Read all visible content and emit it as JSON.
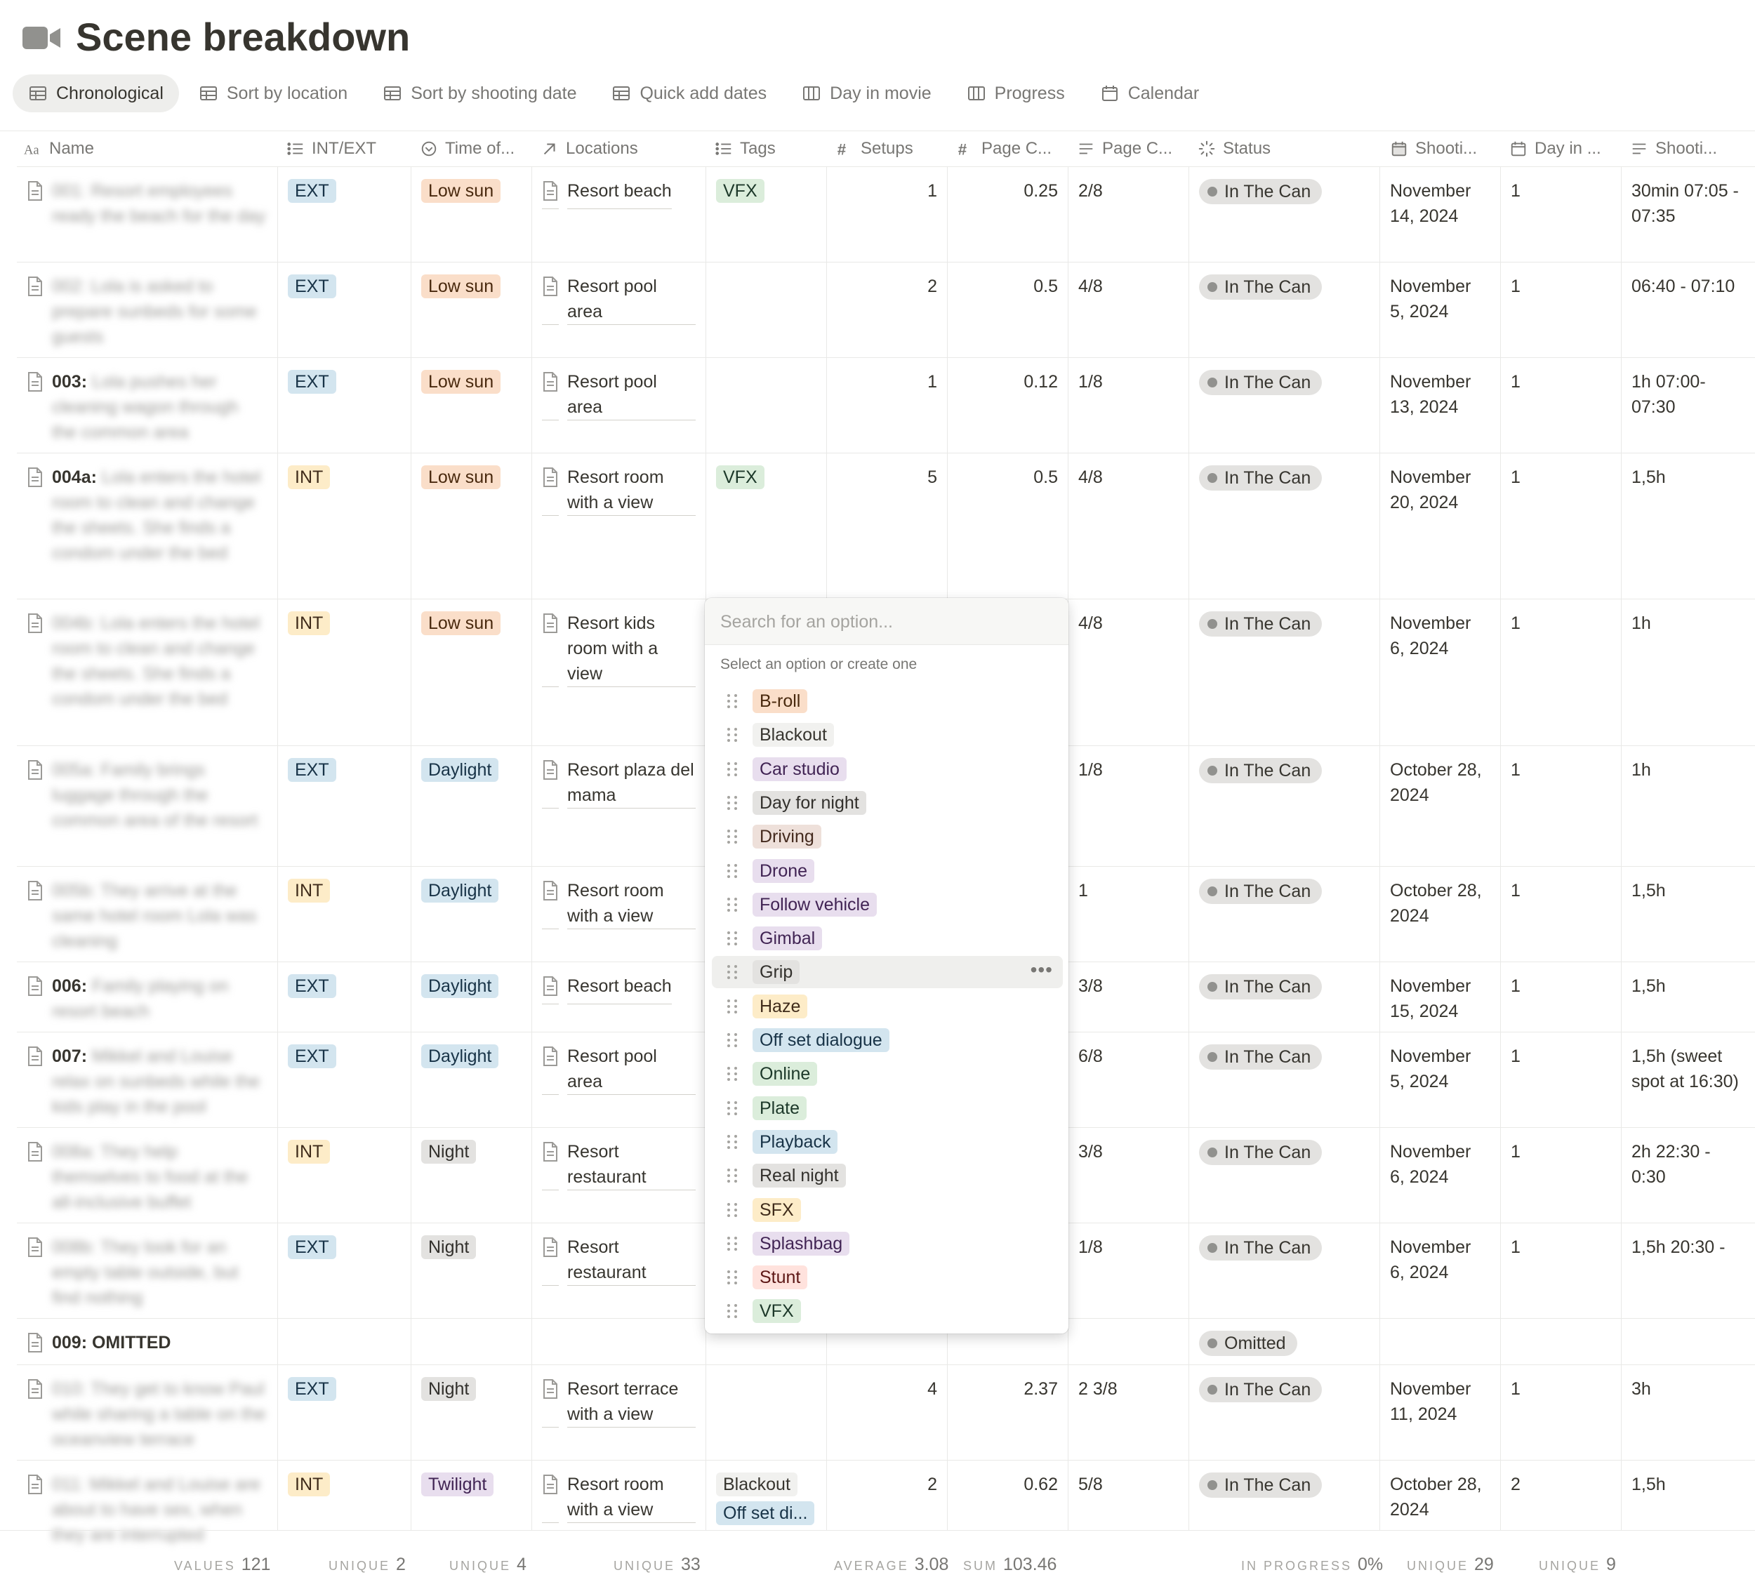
{
  "page": {
    "title": "Scene breakdown",
    "icon": "video-camera-icon"
  },
  "views": [
    {
      "label": "Chronological",
      "icon": "table-icon",
      "active": true
    },
    {
      "label": "Sort by location",
      "icon": "table-icon"
    },
    {
      "label": "Sort by shooting date",
      "icon": "table-icon"
    },
    {
      "label": "Quick add dates",
      "icon": "table-icon"
    },
    {
      "label": "Day in movie",
      "icon": "board-icon"
    },
    {
      "label": "Progress",
      "icon": "board-icon"
    },
    {
      "label": "Calendar",
      "icon": "calendar-icon"
    }
  ],
  "columns": [
    {
      "label": "Name",
      "icon": "text-icon"
    },
    {
      "label": "INT/EXT",
      "icon": "list-icon"
    },
    {
      "label": "Time of...",
      "icon": "select-icon"
    },
    {
      "label": "Locations",
      "icon": "relation-icon"
    },
    {
      "label": "Tags",
      "icon": "list-icon"
    },
    {
      "label": "Setups",
      "icon": "number-icon"
    },
    {
      "label": "Page C...",
      "icon": "number-icon"
    },
    {
      "label": "Page C...",
      "icon": "text-lines-icon"
    },
    {
      "label": "Status",
      "icon": "status-icon"
    },
    {
      "label": "Shooti...",
      "icon": "date-icon"
    },
    {
      "label": "Day in ...",
      "icon": "calendar-icon"
    },
    {
      "label": "Shooti...",
      "icon": "text-lines-icon"
    }
  ],
  "rows": [
    {
      "prefix": "",
      "desc": "001: Resort employees ready the beach for the day",
      "intext": "EXT",
      "time": "Low sun",
      "location": "Resort beach",
      "tags": [
        "VFX"
      ],
      "setups": "1",
      "pages_num": "0.25",
      "pages_frac": "2/8",
      "status": "In The Can",
      "date": "November 14, 2024",
      "day": "1",
      "time_text": "30min 07:05 - 07:35"
    },
    {
      "prefix": "",
      "desc": "002: Lola is asked to prepare sunbeds for some guests",
      "intext": "EXT",
      "time": "Low sun",
      "location": "Resort pool area",
      "tags": [],
      "setups": "2",
      "pages_num": "0.5",
      "pages_frac": "4/8",
      "status": "In The Can",
      "date": "November 5, 2024",
      "day": "1",
      "time_text": "06:40 - 07:10"
    },
    {
      "prefix": "003:",
      "desc": "Lola pushes her cleaning wagon through the common area",
      "intext": "EXT",
      "time": "Low sun",
      "location": "Resort pool area",
      "tags": [],
      "setups": "1",
      "pages_num": "0.12",
      "pages_frac": "1/8",
      "status": "In The Can",
      "date": "November 13, 2024",
      "day": "1",
      "time_text": "1h 07:00-07:30"
    },
    {
      "prefix": "004a:",
      "desc": "Lola enters the hotel room to clean and change the sheets. She finds a condom under the bed",
      "intext": "INT",
      "time": "Low sun",
      "location": "Resort room with a view",
      "tags": [
        "VFX"
      ],
      "setups": "5",
      "pages_num": "0.5",
      "pages_frac": "4/8",
      "status": "In The Can",
      "date": "November 20, 2024",
      "day": "1",
      "time_text": "1,5h"
    },
    {
      "prefix": "",
      "desc": "004b: Lola enters the hotel room to clean and change the sheets. She finds a condom under the bed",
      "intext": "INT",
      "time": "Low sun",
      "location": "Resort kids room with a view",
      "tags": [],
      "setups": "",
      "pages_num": "",
      "pages_frac": "4/8",
      "status": "In The Can",
      "date": "November 6, 2024",
      "day": "1",
      "time_text": "1h"
    },
    {
      "prefix": "",
      "desc": "005a: Family brings luggage through the common area of the resort",
      "intext": "EXT",
      "time": "Daylight",
      "location": "Resort plaza del mama",
      "tags": [],
      "setups": "",
      "pages_num": "",
      "pages_frac": "1/8",
      "status": "In The Can",
      "date": "October 28, 2024",
      "day": "1",
      "time_text": "1h"
    },
    {
      "prefix": "",
      "desc": "005b: They arrive at the same hotel room Lola was cleaning",
      "intext": "INT",
      "time": "Daylight",
      "location": "Resort room with a view",
      "tags": [],
      "setups": "",
      "pages_num": "",
      "pages_frac": "1",
      "status": "In The Can",
      "date": "October 28, 2024",
      "day": "1",
      "time_text": "1,5h"
    },
    {
      "prefix": "006:",
      "desc": "Family playing on resort beach",
      "intext": "EXT",
      "time": "Daylight",
      "location": "Resort beach",
      "tags": [],
      "setups": "",
      "pages_num": "",
      "pages_frac": "3/8",
      "status": "In The Can",
      "date": "November 15, 2024",
      "day": "1",
      "time_text": "1,5h"
    },
    {
      "prefix": "007:",
      "desc": "Mikkel and Louise relax on sunbeds while the kids play in the pool",
      "intext": "EXT",
      "time": "Daylight",
      "location": "Resort pool area",
      "tags": [],
      "setups": "",
      "pages_num": "",
      "pages_frac": "6/8",
      "status": "In The Can",
      "date": "November 5, 2024",
      "day": "1",
      "time_text": "1,5h (sweet spot at 16:30)"
    },
    {
      "prefix": "",
      "desc": "008a: They help themselves to food at the all-inclusive buffet",
      "intext": "INT",
      "time": "Night",
      "location": "Resort restaurant",
      "tags": [],
      "setups": "",
      "pages_num": "",
      "pages_frac": "3/8",
      "status": "In The Can",
      "date": "November 6, 2024",
      "day": "1",
      "time_text": "2h 22:30 - 0:30"
    },
    {
      "prefix": "",
      "desc": "008b: They look for an empty table outside, but find nothing",
      "intext": "EXT",
      "time": "Night",
      "location": "Resort restaurant",
      "tags": [],
      "setups": "",
      "pages_num": "",
      "pages_frac": "1/8",
      "status": "In The Can",
      "date": "November 6, 2024",
      "day": "1",
      "time_text": "1,5h 20:30 -"
    },
    {
      "prefix": "009: OMITTED",
      "desc": "",
      "intext": "",
      "time": "",
      "location": "",
      "tags": [],
      "setups": "",
      "pages_num": "",
      "pages_frac": "",
      "status": "Omitted",
      "date": "",
      "day": "",
      "time_text": ""
    },
    {
      "prefix": "",
      "desc": "010: They get to know Paul while sharing a table on the oceanview terrace",
      "intext": "EXT",
      "time": "Night",
      "location": "Resort terrace with a view",
      "tags": [],
      "setups": "4",
      "pages_num": "2.37",
      "pages_frac": "2 3/8",
      "status": "In The Can",
      "date": "November 11, 2024",
      "day": "1",
      "time_text": "3h"
    },
    {
      "prefix": "",
      "desc": "011: Mikkel and Louise are about to have sex, when they are interrupted",
      "intext": "INT",
      "time": "Twilight",
      "location": "Resort room with a view",
      "tags": [
        "Blackout",
        "Off set di..."
      ],
      "setups": "2",
      "pages_num": "0.62",
      "pages_frac": "5/8",
      "status": "In The Can",
      "date": "October 28, 2024",
      "day": "2",
      "time_text": "1,5h"
    }
  ],
  "tag_colors": {
    "EXT": "blue",
    "INT": "yellow",
    "Low sun": "orange",
    "Daylight": "blue",
    "Night": "gray",
    "Twilight": "purple",
    "VFX": "green",
    "Blackout": "plain",
    "Off set di...": "blue",
    "In The Can": "gray",
    "Omitted": "gray"
  },
  "popup": {
    "search_placeholder": "Search for an option...",
    "hint": "Select an option or create one",
    "hovered": "Grip",
    "options": [
      {
        "label": "B-roll",
        "color": "orange"
      },
      {
        "label": "Blackout",
        "color": "plain"
      },
      {
        "label": "Car studio",
        "color": "purple"
      },
      {
        "label": "Day for night",
        "color": "gray"
      },
      {
        "label": "Driving",
        "color": "brown"
      },
      {
        "label": "Drone",
        "color": "purple"
      },
      {
        "label": "Follow vehicle",
        "color": "purple"
      },
      {
        "label": "Gimbal",
        "color": "purple"
      },
      {
        "label": "Grip",
        "color": "gray"
      },
      {
        "label": "Haze",
        "color": "yellow"
      },
      {
        "label": "Off set dialogue",
        "color": "blue"
      },
      {
        "label": "Online",
        "color": "green"
      },
      {
        "label": "Plate",
        "color": "green"
      },
      {
        "label": "Playback",
        "color": "blue"
      },
      {
        "label": "Real night",
        "color": "gray"
      },
      {
        "label": "SFX",
        "color": "yellow"
      },
      {
        "label": "Splashbag",
        "color": "purple"
      },
      {
        "label": "Stunt",
        "color": "red"
      },
      {
        "label": "VFX",
        "color": "green"
      }
    ]
  },
  "footer": [
    {
      "key": "VALUES",
      "value": "121"
    },
    {
      "key": "UNIQUE",
      "value": "2"
    },
    {
      "key": "UNIQUE",
      "value": "4"
    },
    {
      "key": "UNIQUE",
      "value": "33"
    },
    {
      "key": "AVERAGE",
      "value": "3.08"
    },
    {
      "key": "SUM",
      "value": "103.46"
    },
    {
      "key": "IN PROGRESS",
      "value": "0%"
    },
    {
      "key": "UNIQUE",
      "value": "29"
    },
    {
      "key": "UNIQUE",
      "value": "9"
    }
  ]
}
